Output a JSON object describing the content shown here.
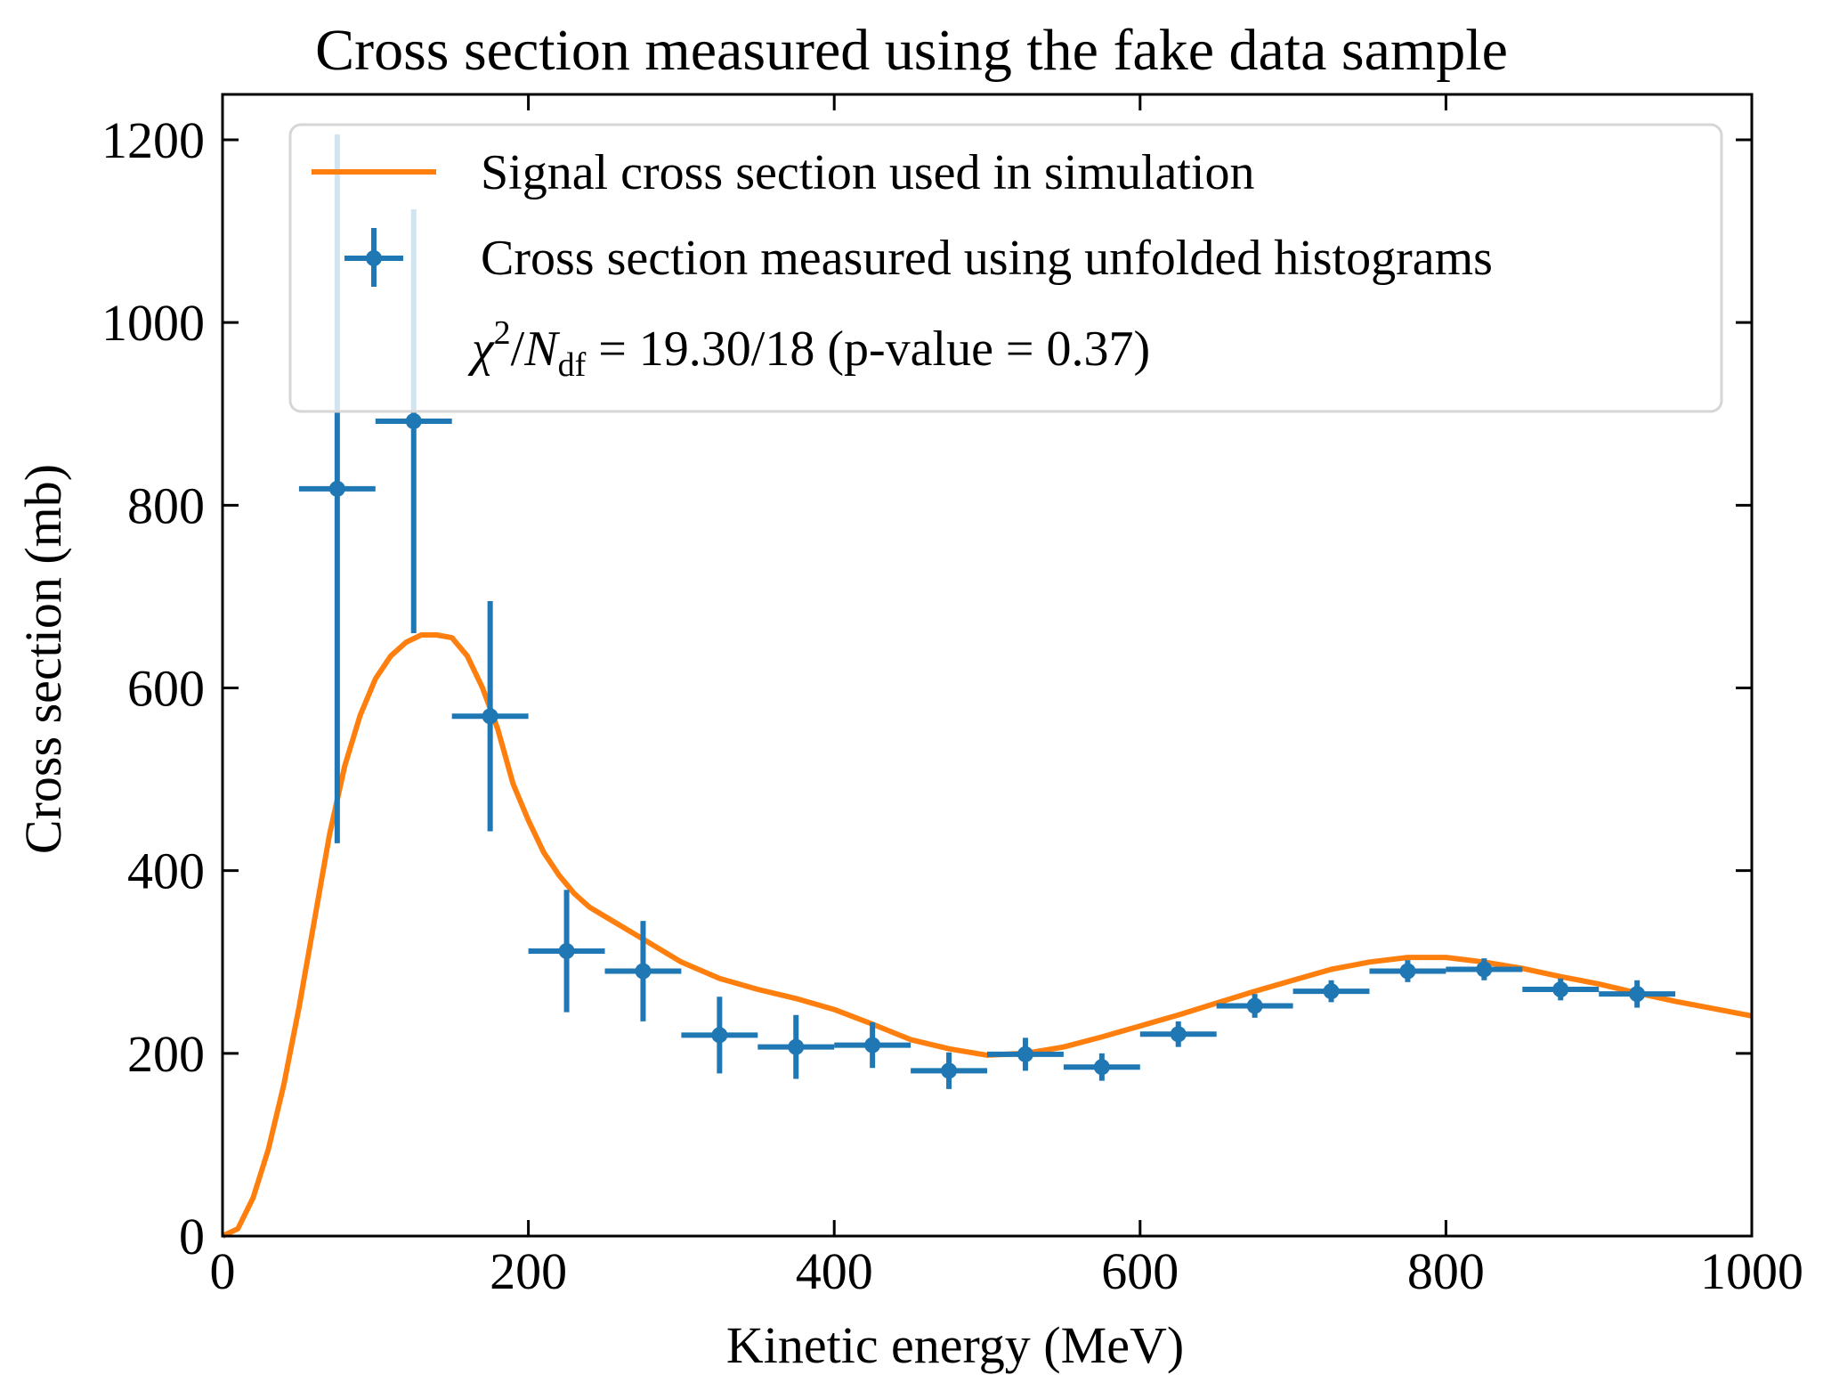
{
  "chart_data": {
    "type": "line",
    "title": "Cross section measured using the fake data sample",
    "xlabel": "Kinetic energy (MeV)",
    "ylabel": "Cross section (mb)",
    "xlim": [
      0,
      1000
    ],
    "ylim": [
      0,
      1200
    ],
    "xticks": [
      "0",
      "200",
      "400",
      "600",
      "800",
      "1000"
    ],
    "yticks": [
      "0",
      "200",
      "400",
      "600",
      "800",
      "1000",
      "1200"
    ],
    "legend": {
      "location": "top-right",
      "signal_label": "Signal cross section used in simulation",
      "measured_label": "Cross section measured using unfolded histograms",
      "chi2_symbol": "χ",
      "chi2_power": "2",
      "chi2_slash": "/",
      "chi2_n": "N",
      "chi2_sub": "df",
      "chi2_rest": " = 19.30/18 (p-value = 0.37)"
    },
    "colors": {
      "signal": "#ff7f0e",
      "measured": "#1f77b4"
    },
    "series": [
      {
        "name": "Signal cross section used in simulation",
        "type": "line",
        "x": [
          0,
          10,
          20,
          30,
          40,
          50,
          60,
          70,
          80,
          90,
          100,
          110,
          120,
          130,
          140,
          150,
          160,
          170,
          180,
          190,
          200,
          210,
          220,
          230,
          240,
          250,
          275,
          300,
          325,
          350,
          375,
          400,
          425,
          450,
          475,
          500,
          525,
          550,
          575,
          600,
          625,
          650,
          675,
          700,
          725,
          750,
          775,
          800,
          825,
          850,
          875,
          900,
          925,
          950,
          975,
          1000
        ],
        "y": [
          0,
          8,
          42,
          95,
          165,
          250,
          345,
          440,
          515,
          570,
          610,
          635,
          650,
          658,
          658,
          655,
          635,
          600,
          555,
          495,
          455,
          420,
          395,
          375,
          360,
          350,
          325,
          300,
          282,
          270,
          260,
          248,
          232,
          215,
          205,
          198,
          200,
          207,
          218,
          230,
          242,
          255,
          268,
          280,
          292,
          300,
          305,
          305,
          300,
          293,
          284,
          276,
          266,
          257,
          249,
          241
        ]
      },
      {
        "name": "Cross section measured using unfolded histograms",
        "type": "errorbar",
        "x": [
          75,
          125,
          175,
          225,
          275,
          325,
          375,
          425,
          475,
          525,
          575,
          625,
          675,
          725,
          775,
          825,
          875,
          925
        ],
        "y": [
          818,
          892,
          569,
          312,
          290,
          220,
          207,
          209,
          181,
          199,
          185,
          221,
          252,
          268,
          290,
          292,
          270,
          265
        ],
        "xerr": [
          25,
          25,
          25,
          25,
          25,
          25,
          25,
          25,
          25,
          25,
          25,
          25,
          25,
          25,
          25,
          25,
          25,
          25
        ],
        "yerr": [
          388,
          232,
          126,
          67,
          55,
          42,
          35,
          25,
          20,
          18,
          15,
          14,
          13,
          12,
          12,
          12,
          12,
          15
        ]
      }
    ]
  }
}
